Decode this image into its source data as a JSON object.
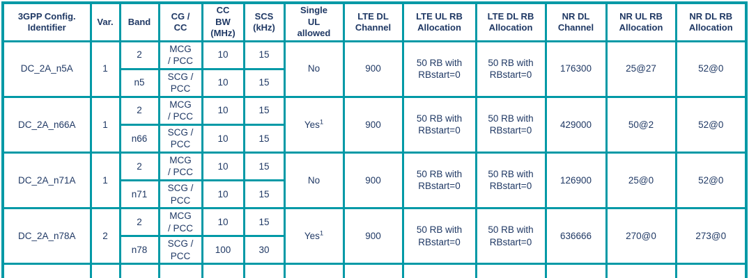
{
  "colors": {
    "border": "#0099A6",
    "text": "#1F3864",
    "bg": "#FFFFFF"
  },
  "table": {
    "headers": {
      "config_identifier": "3GPP Config.\nIdentifier",
      "var": "Var.",
      "band": "Band",
      "cg_cc": "CG /\nCC",
      "cc_bw": "CC\nBW\n(MHz)",
      "scs": "SCS\n(kHz)",
      "single_ul": "Single\nUL\nallowed",
      "lte_dl_channel": "LTE DL\nChannel",
      "lte_ul_rb": "LTE UL RB\nAllocation",
      "lte_dl_rb": "LTE DL RB\nAllocation",
      "nr_dl_channel": "NR DL\nChannel",
      "nr_ul_rb": "NR UL RB\nAllocation",
      "nr_dl_rb": "NR DL RB\nAllocation"
    },
    "rows": [
      {
        "identifier": "DC_2A_n5A",
        "var": "1",
        "bands": [
          {
            "band": "2",
            "cg_cc": "MCG\n/ PCC",
            "cc_bw": "10",
            "scs": "15"
          },
          {
            "band": "n5",
            "cg_cc": "SCG /\nPCC",
            "cc_bw": "10",
            "scs": "15"
          }
        ],
        "single_ul": "No",
        "single_ul_sup": "",
        "lte_dl_channel": "900",
        "lte_ul_rb": "50 RB with\nRBstart=0",
        "lte_dl_rb": "50 RB with\nRBstart=0",
        "nr_dl_channel": "176300",
        "nr_ul_rb": "25@27",
        "nr_dl_rb": "52@0"
      },
      {
        "identifier": "DC_2A_n66A",
        "var": "1",
        "bands": [
          {
            "band": "2",
            "cg_cc": "MCG\n/ PCC",
            "cc_bw": "10",
            "scs": "15"
          },
          {
            "band": "n66",
            "cg_cc": "SCG /\nPCC",
            "cc_bw": "10",
            "scs": "15"
          }
        ],
        "single_ul": "Yes",
        "single_ul_sup": "1",
        "lte_dl_channel": "900",
        "lte_ul_rb": "50 RB with\nRBstart=0",
        "lte_dl_rb": "50 RB with\nRBstart=0",
        "nr_dl_channel": "429000",
        "nr_ul_rb": "50@2",
        "nr_dl_rb": "52@0"
      },
      {
        "identifier": "DC_2A_n71A",
        "var": "1",
        "bands": [
          {
            "band": "2",
            "cg_cc": "MCG\n/ PCC",
            "cc_bw": "10",
            "scs": "15"
          },
          {
            "band": "n71",
            "cg_cc": "SCG /\nPCC",
            "cc_bw": "10",
            "scs": "15"
          }
        ],
        "single_ul": "No",
        "single_ul_sup": "",
        "lte_dl_channel": "900",
        "lte_ul_rb": "50 RB with\nRBstart=0",
        "lte_dl_rb": "50 RB with\nRBstart=0",
        "nr_dl_channel": "126900",
        "nr_ul_rb": "25@0",
        "nr_dl_rb": "52@0"
      },
      {
        "identifier": "DC_2A_n78A",
        "var": "2",
        "bands": [
          {
            "band": "2",
            "cg_cc": "MCG\n/ PCC",
            "cc_bw": "10",
            "scs": "15"
          },
          {
            "band": "n78",
            "cg_cc": "SCG /\nPCC",
            "cc_bw": "100",
            "scs": "30"
          }
        ],
        "single_ul": "Yes",
        "single_ul_sup": "1",
        "lte_dl_channel": "900",
        "lte_ul_rb": "50 RB with\nRBstart=0",
        "lte_dl_rb": "50 RB with\nRBstart=0",
        "nr_dl_channel": "636666",
        "nr_ul_rb": "270@0",
        "nr_dl_rb": "273@0"
      }
    ]
  }
}
